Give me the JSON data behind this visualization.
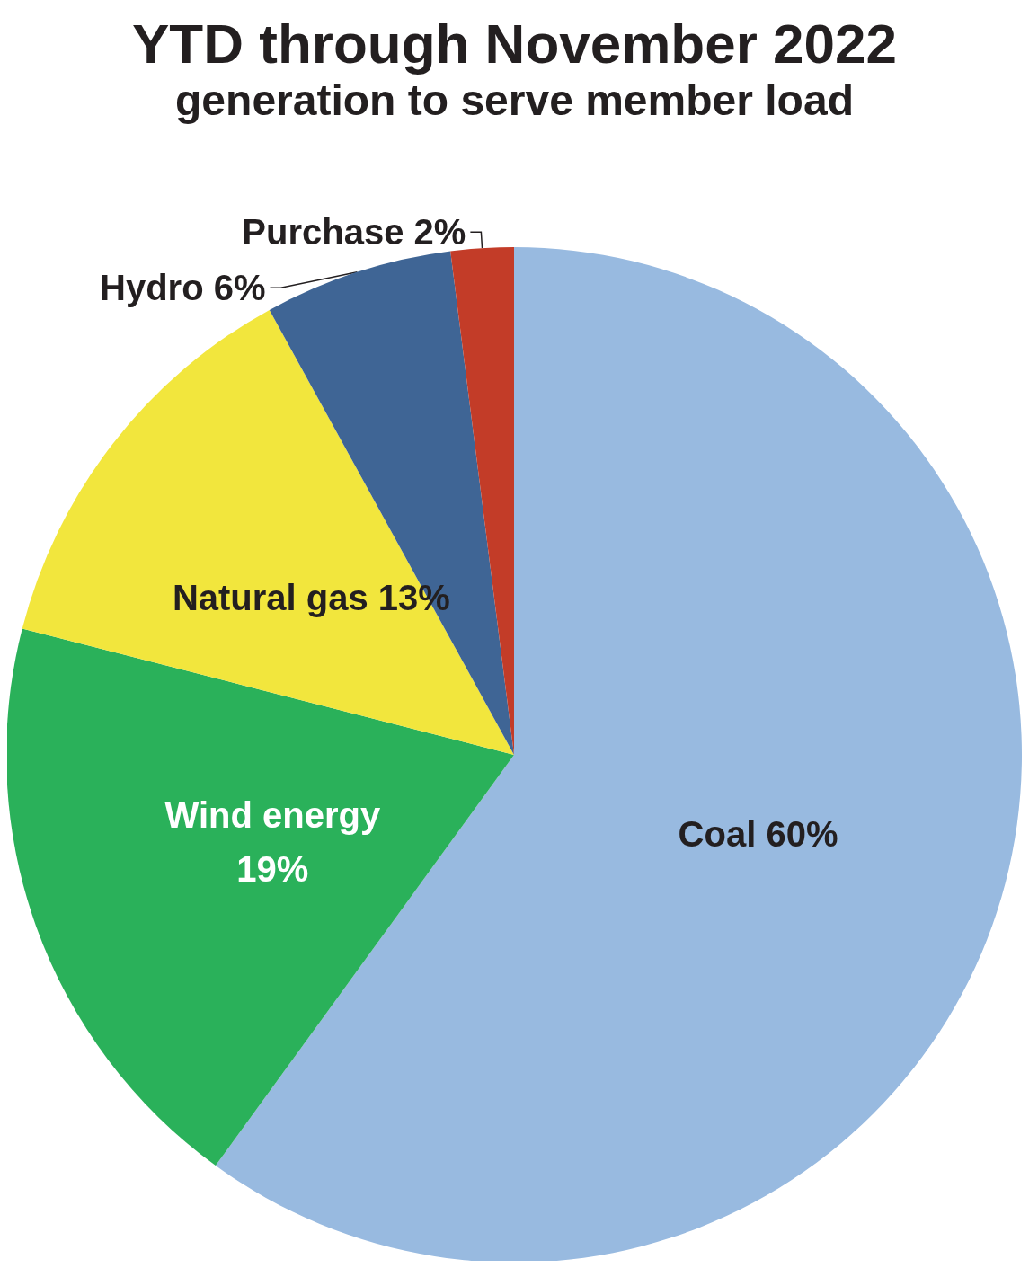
{
  "chart_data": {
    "type": "pie",
    "title": "YTD through November 2022",
    "subtitle": "generation to serve member load",
    "categories": [
      "Coal",
      "Wind energy",
      "Natural gas",
      "Hydro",
      "Purchase"
    ],
    "values": [
      60,
      19,
      13,
      6,
      2
    ],
    "value_labels": [
      "60%",
      "19%",
      "13%",
      "6%",
      "2%"
    ],
    "colors": [
      "#98bae0",
      "#2ab15a",
      "#f2e63d",
      "#3f6595",
      "#c33c28"
    ],
    "legend": false
  }
}
